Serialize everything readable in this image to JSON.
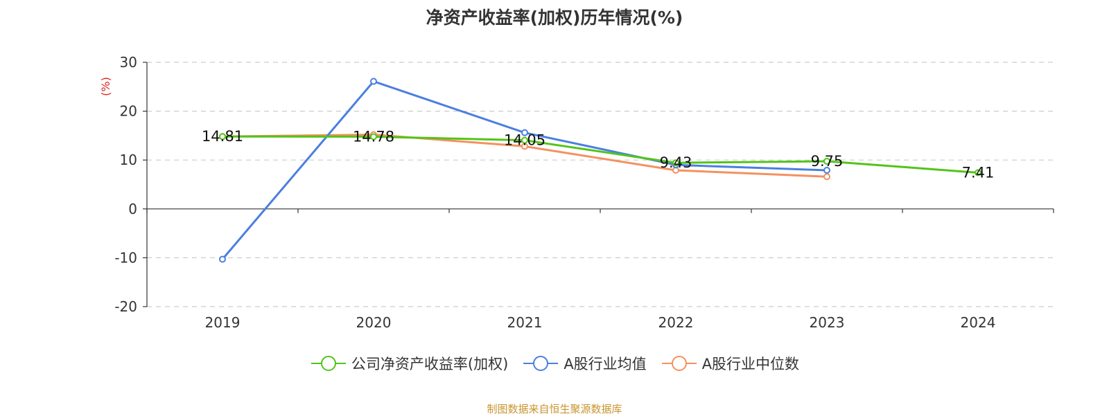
{
  "title": "净资产收益率(加权)历年情况(%)",
  "source": "制图数据来自恒生聚源数据库",
  "chart_data": {
    "type": "line",
    "title": "净资产收益率(加权)历年情况(%)",
    "ylabel": "(%)",
    "xlabel": "",
    "categories": [
      "2019",
      "2020",
      "2021",
      "2022",
      "2023",
      "2024"
    ],
    "ylim": [
      -20,
      30
    ],
    "yticks": [
      -20,
      -10,
      0,
      10,
      20,
      30
    ],
    "grid": true,
    "legend_position": "bottom",
    "series": [
      {
        "name": "公司净资产收益率(加权)",
        "color": "#52c41a",
        "values": [
          14.81,
          14.78,
          14.05,
          9.43,
          9.75,
          7.41
        ],
        "labels": [
          "14.81",
          "14.78",
          "14.05",
          "9.43",
          "9.75",
          "7.41"
        ]
      },
      {
        "name": "A股行业均值",
        "color": "#4a7fe0",
        "values": [
          -10.3,
          26.1,
          15.6,
          9.0,
          7.9,
          null
        ]
      },
      {
        "name": "A股行业中位数",
        "color": "#f4915e",
        "values": [
          14.8,
          15.2,
          12.8,
          7.9,
          6.6,
          null
        ]
      }
    ]
  }
}
